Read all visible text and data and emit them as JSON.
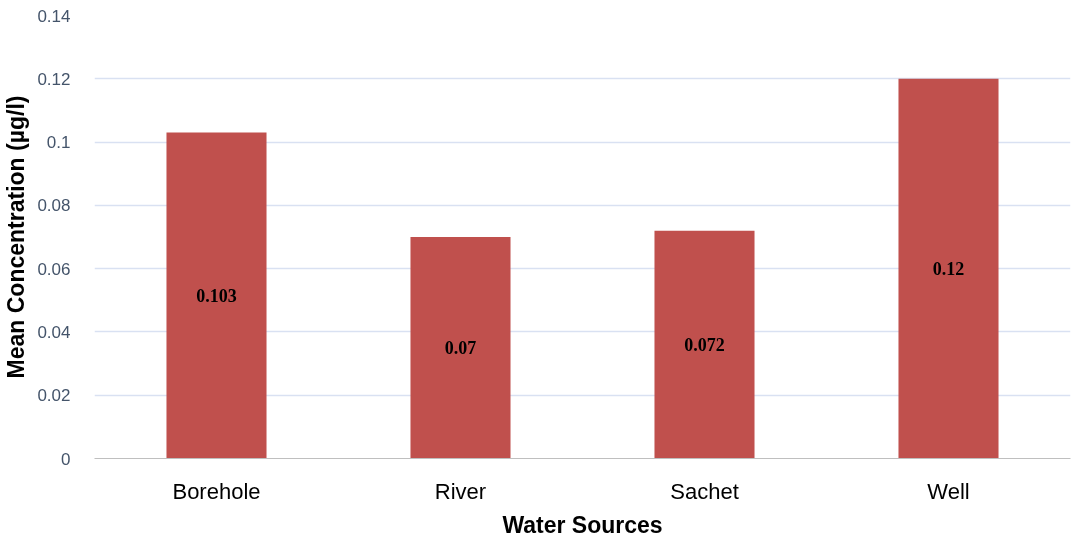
{
  "chart_data": {
    "type": "bar",
    "xlabel": "Water Sources",
    "ylabel": "Mean Concentration (µg/l)",
    "categories": [
      "Borehole",
      "River",
      "Sachet",
      "Well"
    ],
    "values": [
      0.103,
      0.07,
      0.072,
      0.12
    ],
    "color": "#c0504d",
    "ylim": [
      0,
      0.14
    ],
    "yticks": [
      0,
      0.02,
      0.04,
      0.06,
      0.08,
      0.1,
      0.12,
      0.14
    ],
    "grid": "y",
    "data_labels": true
  }
}
